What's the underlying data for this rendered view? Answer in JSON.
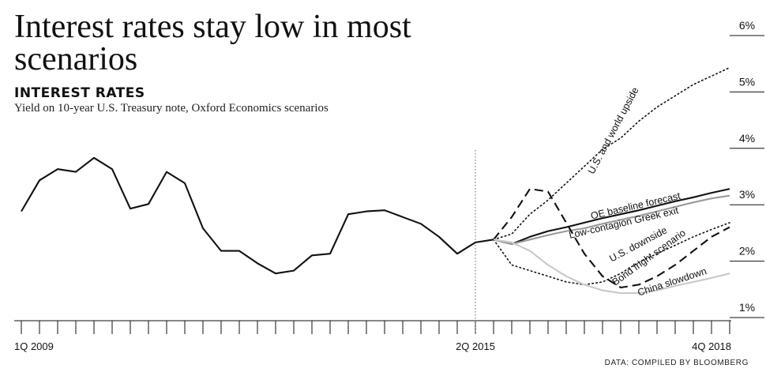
{
  "header": {
    "title": "Interest rates stay low in most scenarios",
    "subtitle": "INTEREST RATES",
    "caption": "Yield on 10-year U.S. Treasury note, Oxford Economics scenarios"
  },
  "source": "DATA: COMPILED BY BLOOMBERG",
  "colors": {
    "ink": "#111111",
    "gray": "#999999",
    "light_gray": "#c8c8c8"
  },
  "chart_data": {
    "type": "line",
    "x_axis": {
      "range": [
        0,
        39
      ],
      "tick_labels": [
        {
          "x": 0,
          "label": "1Q 2009"
        },
        {
          "x": 25,
          "label": "2Q 2015"
        },
        {
          "x": 39,
          "label": "4Q 2018"
        }
      ]
    },
    "y_axis": {
      "range": [
        0.8,
        6.4
      ],
      "ticks": [
        1,
        2,
        3,
        4,
        5,
        6
      ],
      "tick_labels": [
        "1%",
        "2%",
        "3%",
        "4%",
        "5%",
        "6%"
      ],
      "position": "right"
    },
    "forecast_divider_x": 25,
    "series": [
      {
        "name": "",
        "style": "solid",
        "color": "#111111",
        "points": [
          [
            0,
            2.7
          ],
          [
            1,
            3.25
          ],
          [
            2,
            3.45
          ],
          [
            3,
            3.4
          ],
          [
            4,
            3.65
          ],
          [
            5,
            3.45
          ],
          [
            6,
            2.75
          ],
          [
            7,
            2.83
          ],
          [
            8,
            3.4
          ],
          [
            9,
            3.2
          ],
          [
            10,
            2.4
          ],
          [
            11,
            2.0
          ],
          [
            12,
            2.0
          ],
          [
            13,
            1.78
          ],
          [
            14,
            1.6
          ],
          [
            15,
            1.65
          ],
          [
            16,
            1.92
          ],
          [
            17,
            1.95
          ],
          [
            18,
            2.65
          ],
          [
            19,
            2.7
          ],
          [
            20,
            2.72
          ],
          [
            21,
            2.6
          ],
          [
            22,
            2.48
          ],
          [
            23,
            2.25
          ],
          [
            24,
            1.95
          ],
          [
            25,
            2.15
          ],
          [
            26,
            2.2
          ]
        ]
      },
      {
        "name": "OE baseline forecast",
        "style": "solid",
        "color": "#111111",
        "points": [
          [
            26,
            2.2
          ],
          [
            27,
            2.12
          ],
          [
            28,
            2.25
          ],
          [
            29,
            2.35
          ],
          [
            30,
            2.42
          ],
          [
            31,
            2.5
          ],
          [
            32,
            2.58
          ],
          [
            33,
            2.65
          ],
          [
            34,
            2.72
          ],
          [
            35,
            2.8
          ],
          [
            36,
            2.88
          ],
          [
            37,
            2.95
          ],
          [
            38,
            3.03
          ],
          [
            39,
            3.1
          ]
        ]
      },
      {
        "name": "Low-contagion Greek exit",
        "style": "solid",
        "color": "#999999",
        "points": [
          [
            26,
            2.2
          ],
          [
            27,
            2.12
          ],
          [
            28,
            2.2
          ],
          [
            29,
            2.28
          ],
          [
            30,
            2.35
          ],
          [
            31,
            2.4
          ],
          [
            32,
            2.48
          ],
          [
            33,
            2.55
          ],
          [
            34,
            2.62
          ],
          [
            35,
            2.7
          ],
          [
            36,
            2.78
          ],
          [
            37,
            2.86
          ],
          [
            38,
            2.93
          ],
          [
            39,
            2.98
          ]
        ]
      },
      {
        "name": "U.S. and world upside",
        "style": "dotted",
        "color": "#111111",
        "points": [
          [
            26,
            2.2
          ],
          [
            27,
            2.3
          ],
          [
            28,
            2.65
          ],
          [
            29,
            2.9
          ],
          [
            30,
            3.2
          ],
          [
            31,
            3.5
          ],
          [
            32,
            3.8
          ],
          [
            33,
            4.0
          ],
          [
            34,
            4.3
          ],
          [
            35,
            4.55
          ],
          [
            36,
            4.75
          ],
          [
            37,
            4.95
          ],
          [
            38,
            5.1
          ],
          [
            39,
            5.25
          ]
        ]
      },
      {
        "name": "U.S. downside",
        "style": "dotted",
        "color": "#111111",
        "points": [
          [
            26,
            2.2
          ],
          [
            27,
            1.75
          ],
          [
            28,
            1.65
          ],
          [
            29,
            1.55
          ],
          [
            30,
            1.45
          ],
          [
            31,
            1.4
          ],
          [
            32,
            1.45
          ],
          [
            33,
            1.6
          ],
          [
            34,
            1.8
          ],
          [
            35,
            1.95
          ],
          [
            36,
            2.1
          ],
          [
            37,
            2.25
          ],
          [
            38,
            2.38
          ],
          [
            39,
            2.5
          ]
        ]
      },
      {
        "name": "Bond fright scenario",
        "style": "dashed",
        "color": "#111111",
        "points": [
          [
            26,
            2.2
          ],
          [
            27,
            2.6
          ],
          [
            28,
            3.1
          ],
          [
            29,
            3.05
          ],
          [
            30,
            2.5
          ],
          [
            31,
            1.95
          ],
          [
            32,
            1.55
          ],
          [
            33,
            1.35
          ],
          [
            34,
            1.4
          ],
          [
            35,
            1.55
          ],
          [
            36,
            1.75
          ],
          [
            37,
            2.0
          ],
          [
            38,
            2.25
          ],
          [
            39,
            2.42
          ]
        ]
      },
      {
        "name": "China slowdown",
        "style": "solid",
        "color": "#c8c8c8",
        "points": [
          [
            26,
            2.2
          ],
          [
            27,
            2.15
          ],
          [
            28,
            2.0
          ],
          [
            29,
            1.75
          ],
          [
            30,
            1.55
          ],
          [
            31,
            1.4
          ],
          [
            32,
            1.3
          ],
          [
            33,
            1.25
          ],
          [
            34,
            1.25
          ],
          [
            35,
            1.3
          ],
          [
            36,
            1.38
          ],
          [
            37,
            1.45
          ],
          [
            38,
            1.52
          ],
          [
            39,
            1.6
          ]
        ]
      }
    ]
  }
}
